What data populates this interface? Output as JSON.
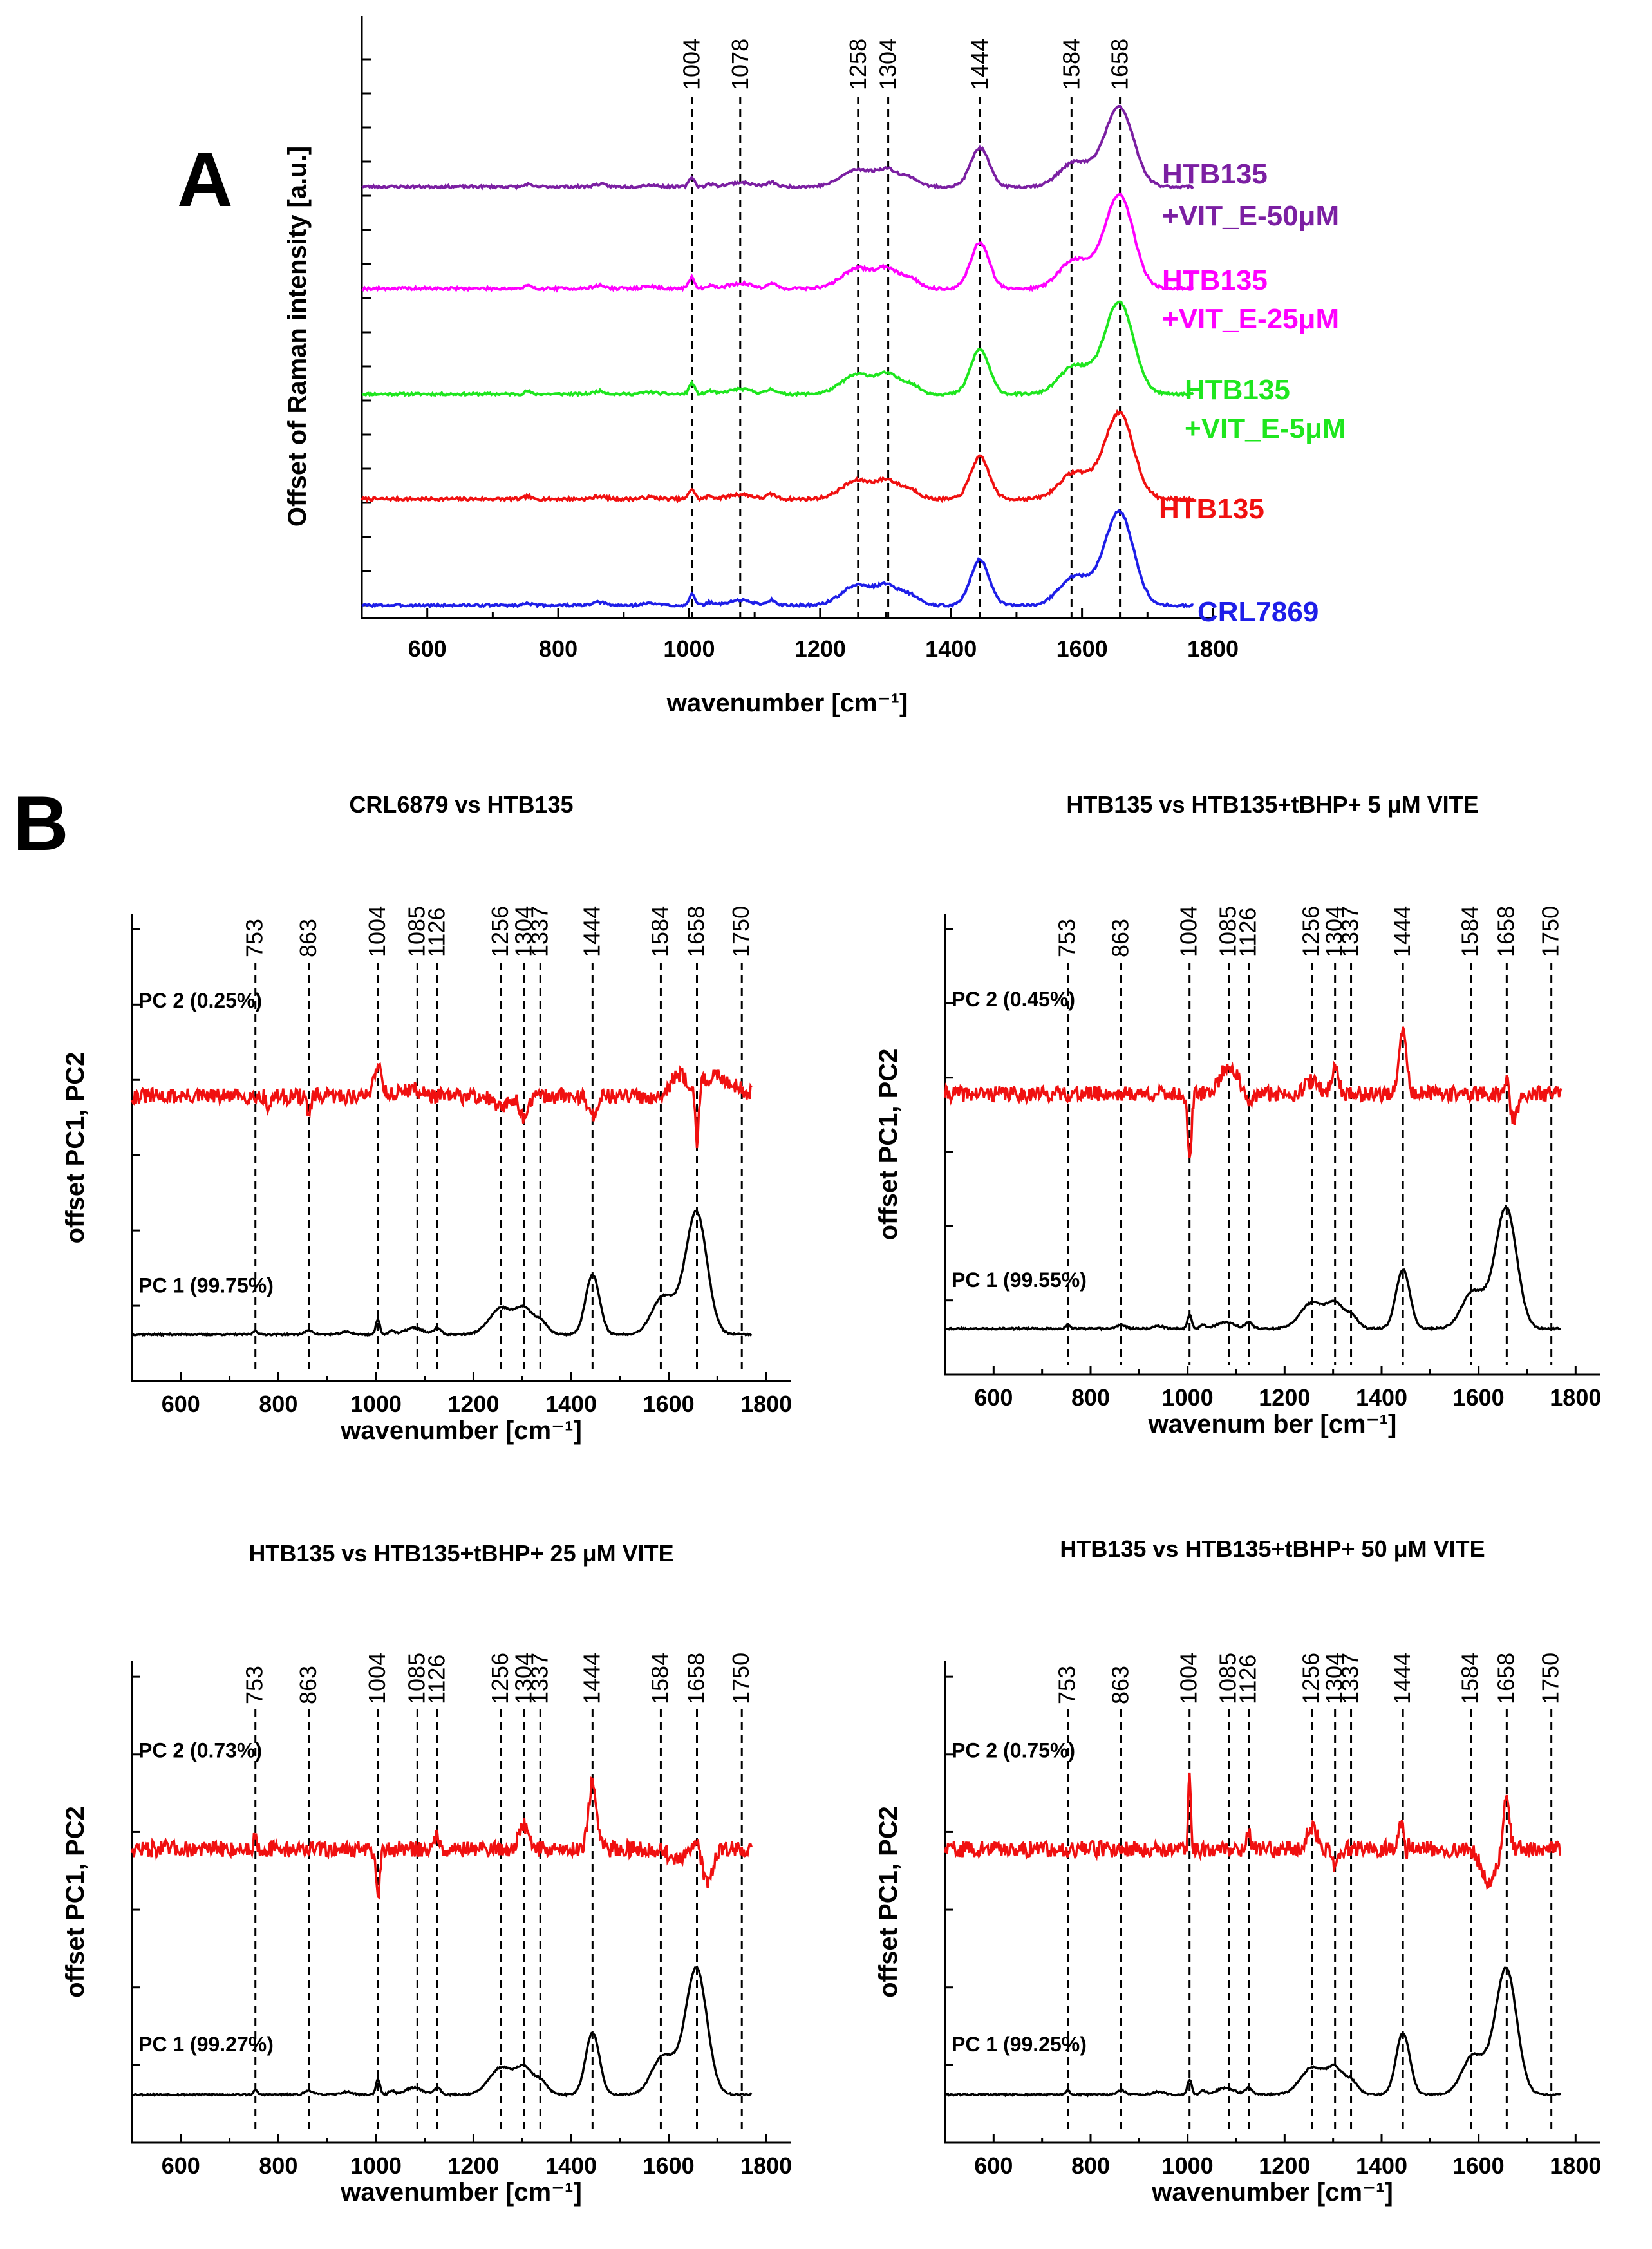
{
  "panels": {
    "a": "A",
    "b": "B"
  },
  "colors": {
    "purple": "#7b1fa2",
    "magenta": "#ff00ff",
    "green": "#1ee61e",
    "red": "#f01010",
    "blue": "#1e1ee8",
    "black": "#000000"
  },
  "chart_data": [
    {
      "id": "A",
      "type": "line",
      "title": "",
      "xlabel": "wavenumber [cm⁻¹]",
      "ylabel": "Offset of Raman intensity [a.u.]",
      "xlim": [
        500,
        1800
      ],
      "xticks": [
        600,
        800,
        1000,
        1200,
        1400,
        1600,
        1800
      ],
      "peaks": [
        1004,
        1078,
        1258,
        1304,
        1444,
        1584,
        1658
      ],
      "series": [
        {
          "name": "CRL7869",
          "label_lines": [
            "CRL7869"
          ],
          "color": "#1e1ee8",
          "offset": 0,
          "scale": 1.0,
          "noise": 0.012,
          "seed": 3
        },
        {
          "name": "HTB135",
          "label_lines": [
            "HTB135"
          ],
          "color": "#f01010",
          "offset": 1,
          "scale": 0.92,
          "noise": 0.015,
          "seed": 7
        },
        {
          "name": "HTB135 +VIT_E-5μM",
          "label_lines": [
            "HTB135",
            "+VIT_E-5μM"
          ],
          "color": "#1ee61e",
          "offset": 2,
          "scale": 0.98,
          "noise": 0.012,
          "seed": 11
        },
        {
          "name": "HTB135 +VIT_E-25μM",
          "label_lines": [
            "HTB135",
            "+VIT_E-25μM"
          ],
          "color": "#ff00ff",
          "offset": 3,
          "scale": 1.0,
          "noise": 0.014,
          "seed": 19
        },
        {
          "name": "HTB135 +VIT_E-50μM",
          "label_lines": [
            "HTB135",
            "+VIT_E-50μM"
          ],
          "color": "#7b1fa2",
          "offset": 4,
          "scale": 0.85,
          "noise": 0.012,
          "seed": 23
        }
      ]
    },
    {
      "id": "B1",
      "type": "line",
      "title": "CRL6879 vs HTB135",
      "xlabel": "wavenumber [cm⁻¹]",
      "ylabel": "offset PC1, PC2",
      "xlim": [
        500,
        1850
      ],
      "xticks": [
        600,
        800,
        1000,
        1200,
        1400,
        1600,
        1800
      ],
      "peaks": [
        753,
        863,
        1004,
        1085,
        1126,
        1256,
        1304,
        1337,
        1444,
        1584,
        1658,
        1750
      ],
      "series": [
        {
          "name": "PC 2 (0.25%)",
          "color": "#f01010",
          "kind": "pc2",
          "profile": "b1",
          "seed": 31
        },
        {
          "name": "PC 1 (99.75%)",
          "color": "#000000",
          "kind": "pc1",
          "seed": 37
        }
      ]
    },
    {
      "id": "B2",
      "type": "line",
      "title": "HTB135 vs HTB135+tBHP+ 5 μM VITE",
      "xlabel": "wavenum ber [cm⁻¹]",
      "ylabel": "offset PC1, PC2",
      "xlim": [
        500,
        1850
      ],
      "xticks": [
        600,
        800,
        1000,
        1200,
        1400,
        1600,
        1800
      ],
      "peaks": [
        753,
        863,
        1004,
        1085,
        1126,
        1256,
        1304,
        1337,
        1444,
        1584,
        1658,
        1750
      ],
      "series": [
        {
          "name": "PC 2 (0.45%)",
          "color": "#f01010",
          "kind": "pc2",
          "profile": "b2",
          "seed": 41
        },
        {
          "name": "PC 1 (99.55%)",
          "color": "#000000",
          "kind": "pc1",
          "seed": 43
        }
      ]
    },
    {
      "id": "B3",
      "type": "line",
      "title": "HTB135 vs HTB135+tBHP+ 25 μM VITE",
      "xlabel": "wavenumber [cm⁻¹]",
      "ylabel": "offset PC1, PC2",
      "xlim": [
        500,
        1850
      ],
      "xticks": [
        600,
        800,
        1000,
        1200,
        1400,
        1600,
        1800
      ],
      "peaks": [
        753,
        863,
        1004,
        1085,
        1126,
        1256,
        1304,
        1337,
        1444,
        1584,
        1658,
        1750
      ],
      "series": [
        {
          "name": "PC 2 (0.73%)",
          "color": "#f01010",
          "kind": "pc2",
          "profile": "b3",
          "seed": 47
        },
        {
          "name": "PC 1 (99.27%)",
          "color": "#000000",
          "kind": "pc1",
          "seed": 53
        }
      ]
    },
    {
      "id": "B4",
      "type": "line",
      "title": "HTB135 vs HTB135+tBHP+ 50 μM VITE",
      "xlabel": "wavenumber [cm⁻¹]",
      "ylabel": "offset PC1, PC2",
      "xlim": [
        500,
        1850
      ],
      "xticks": [
        600,
        800,
        1000,
        1200,
        1400,
        1600,
        1800
      ],
      "peaks": [
        753,
        863,
        1004,
        1085,
        1126,
        1256,
        1304,
        1337,
        1444,
        1584,
        1658,
        1750
      ],
      "series": [
        {
          "name": "PC 2 (0.75%)",
          "color": "#f01010",
          "kind": "pc2",
          "profile": "b4",
          "seed": 59
        },
        {
          "name": "PC 1 (99.25%)",
          "color": "#000000",
          "kind": "pc1",
          "seed": 61
        }
      ]
    }
  ]
}
